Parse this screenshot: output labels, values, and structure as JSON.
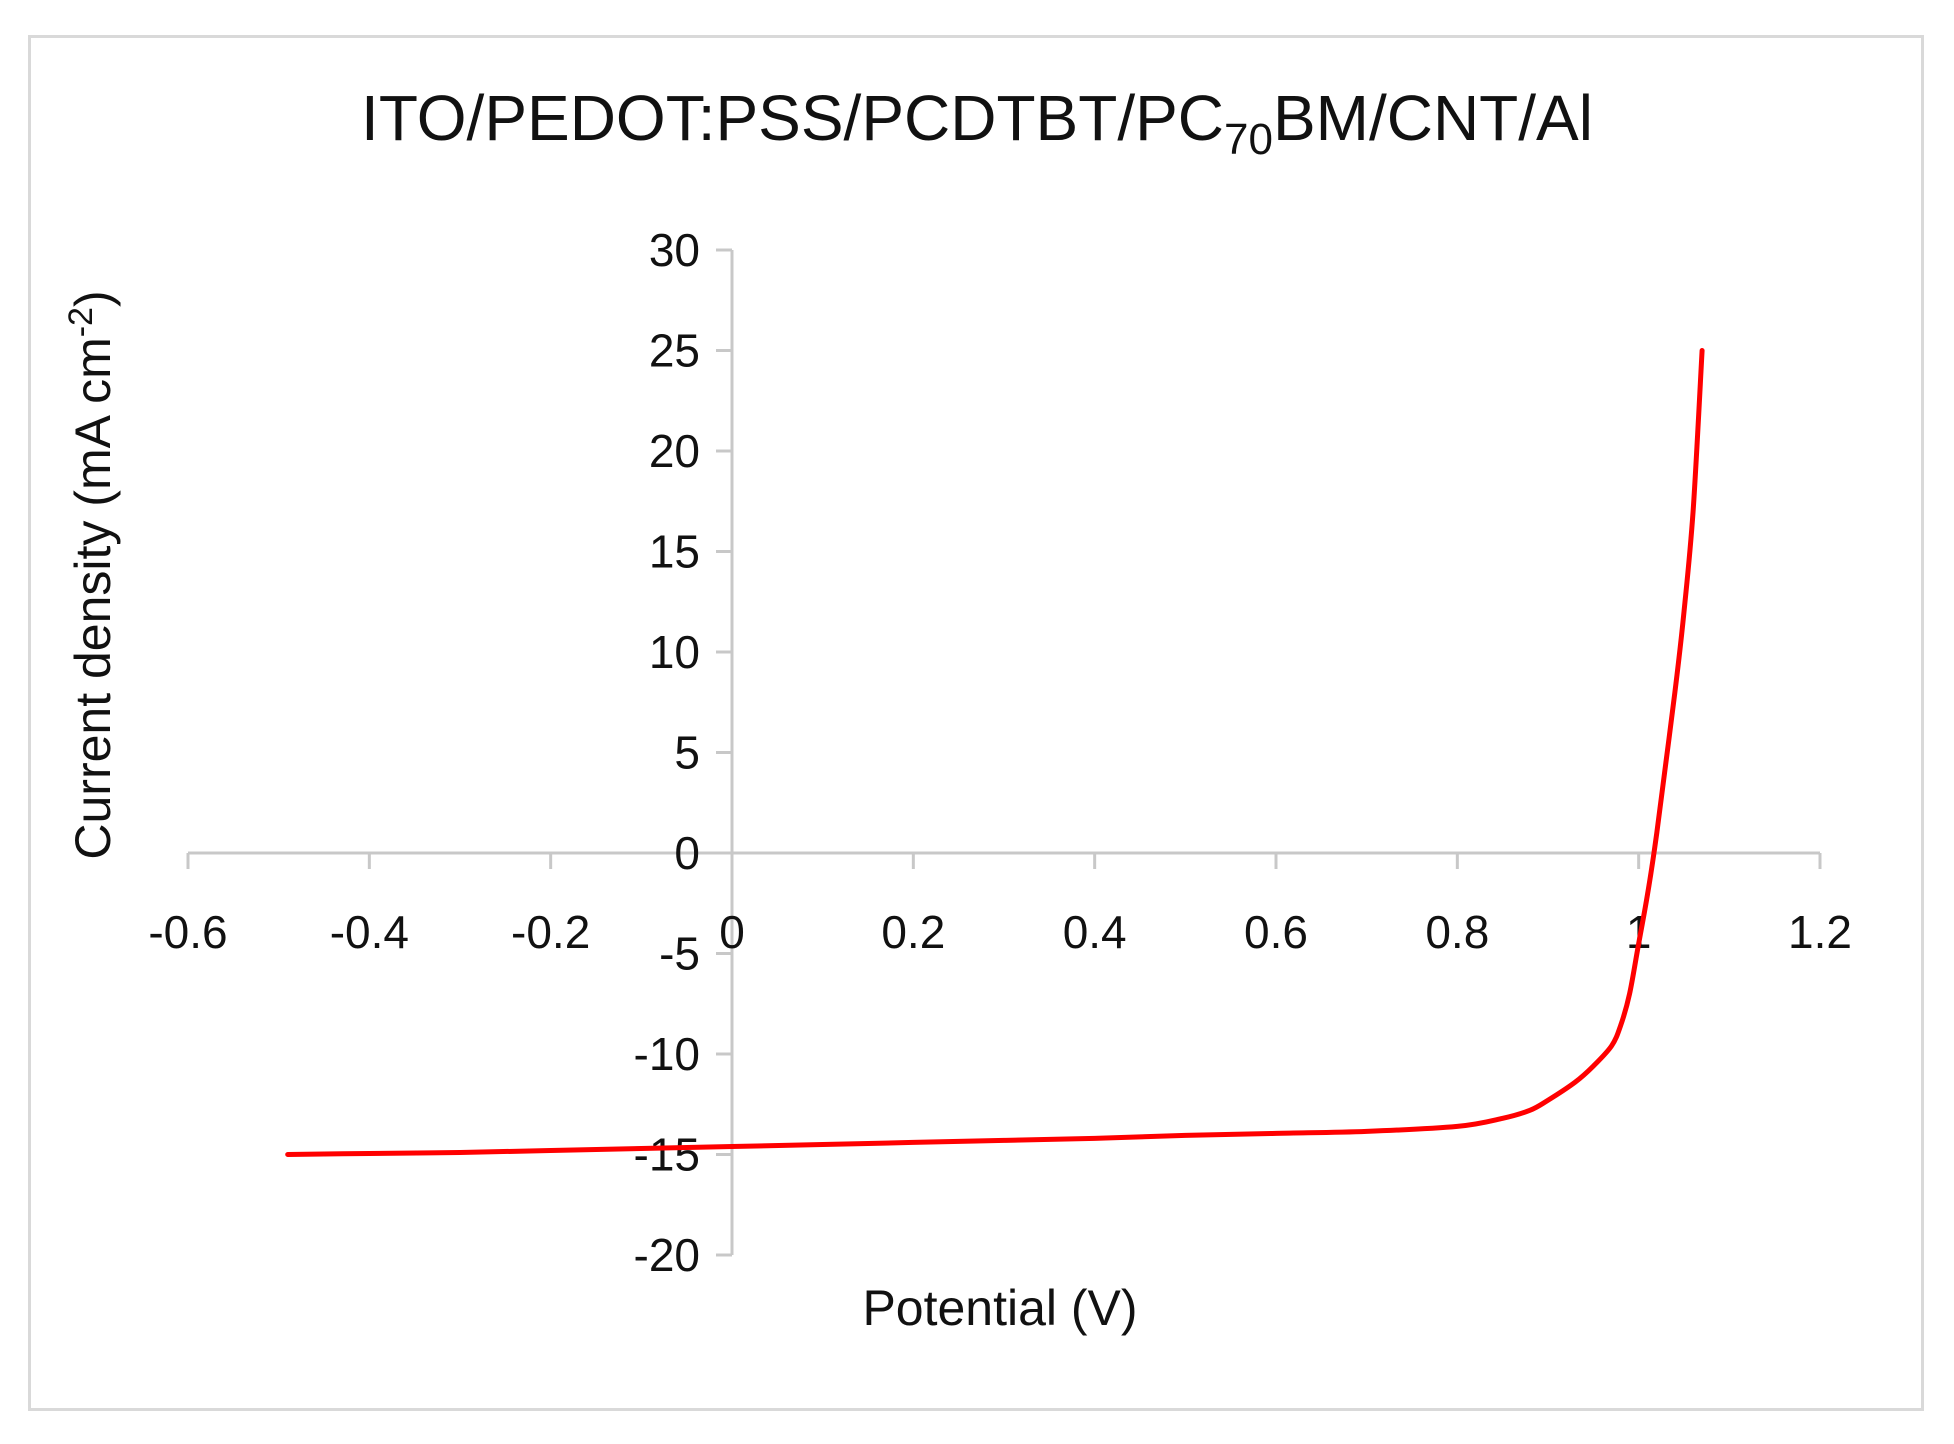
{
  "chart_data": {
    "type": "line",
    "title_parts": {
      "before": "ITO/PEDOT:PSS/PCDTBT/PC",
      "subscript": "70",
      "after": "BM/CNT/Al"
    },
    "xlabel": "Potential (V)",
    "ylabel_parts": {
      "before": "Current density (mA cm",
      "superscript": "-2",
      "after": ")"
    },
    "xlim": [
      -0.6,
      1.2
    ],
    "ylim": [
      -20,
      30
    ],
    "xticks": [
      "-0.6",
      "-0.4",
      "-0.2",
      "0",
      "0.2",
      "0.4",
      "0.6",
      "0.8",
      "1",
      "1.2"
    ],
    "yticks": [
      "30",
      "25",
      "20",
      "15",
      "10",
      "5",
      "0",
      "-5",
      "-10",
      "-15",
      "-20"
    ],
    "grid": false,
    "series": [
      {
        "color": "#ff0000",
        "x": [
          -0.49,
          -0.4,
          -0.3,
          -0.2,
          -0.1,
          0.0,
          0.1,
          0.2,
          0.3,
          0.4,
          0.5,
          0.6,
          0.7,
          0.8,
          0.85,
          0.88,
          0.9,
          0.93,
          0.95,
          0.97,
          0.98,
          0.99,
          1.0,
          1.01,
          1.02,
          1.03,
          1.04,
          1.05,
          1.06,
          1.07
        ],
        "y": [
          -15.0,
          -14.95,
          -14.9,
          -14.8,
          -14.7,
          -14.6,
          -14.5,
          -14.4,
          -14.3,
          -14.2,
          -14.05,
          -13.95,
          -13.85,
          -13.6,
          -13.2,
          -12.8,
          -12.3,
          -11.4,
          -10.6,
          -9.6,
          -8.6,
          -7.0,
          -4.5,
          -2.0,
          1.0,
          4.5,
          8.0,
          12.0,
          17.0,
          25.0
        ]
      }
    ]
  }
}
